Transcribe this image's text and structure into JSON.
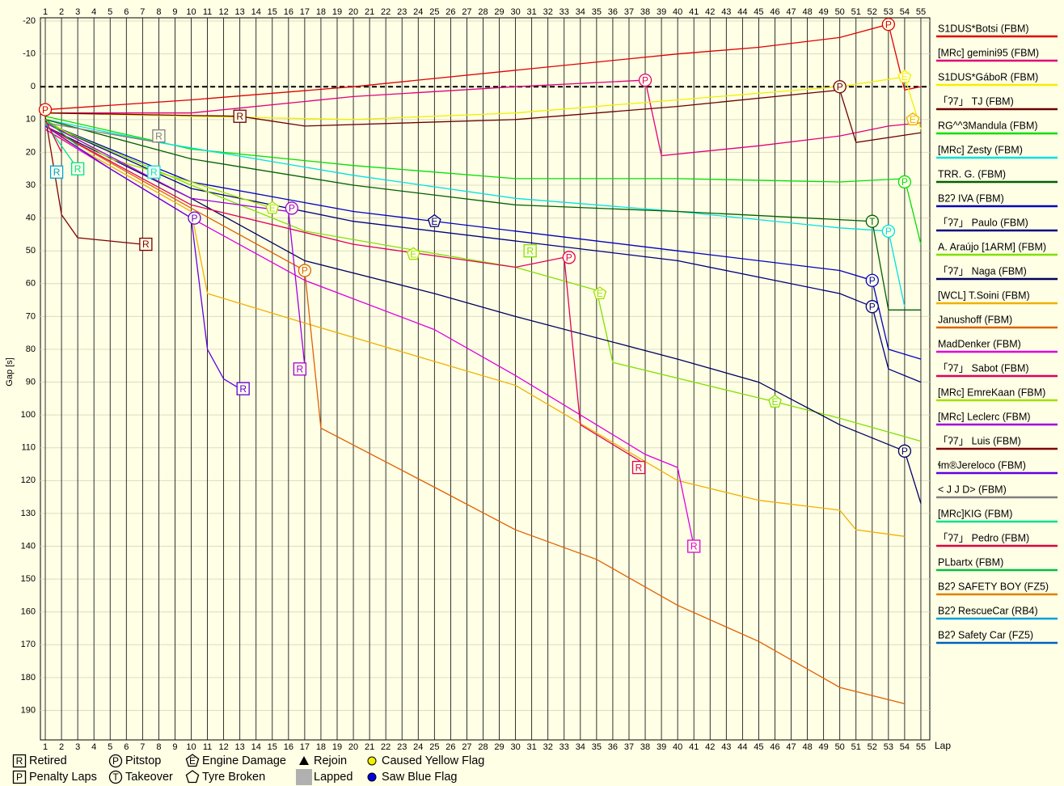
{
  "chart_data": {
    "type": "line",
    "y_axis_label": "Gap [s]",
    "x_axis_label": "Lap",
    "y_inverted": true,
    "grid": true,
    "reference_line": 0,
    "xlim": [
      0.7,
      55.55
    ],
    "ylim": [
      -21,
      199
    ],
    "xticks": [
      1,
      2,
      3,
      4,
      5,
      6,
      7,
      8,
      9,
      10,
      11,
      12,
      13,
      14,
      15,
      16,
      17,
      18,
      19,
      20,
      21,
      22,
      23,
      24,
      25,
      26,
      27,
      28,
      29,
      30,
      31,
      32,
      33,
      34,
      35,
      36,
      37,
      38,
      39,
      40,
      41,
      42,
      43,
      44,
      45,
      46,
      47,
      48,
      49,
      50,
      51,
      52,
      53,
      54,
      55
    ],
    "yticks": [
      -20,
      -10,
      0,
      10,
      20,
      30,
      40,
      50,
      60,
      70,
      80,
      90,
      100,
      110,
      120,
      130,
      140,
      150,
      160,
      170,
      180,
      190
    ],
    "series": [
      {
        "name": "S1DUS*Botsi (FBM)",
        "color": "#e00000",
        "x": [
          1,
          10,
          20,
          30,
          40,
          45,
          50,
          53,
          54,
          55
        ],
        "values": [
          7,
          4,
          0,
          -5,
          -10,
          -12,
          -15,
          -19,
          1,
          0
        ]
      },
      {
        "name": "[MRc] gemini95 (FBM)",
        "color": "#e0007a",
        "x": [
          1,
          10,
          20,
          30,
          38,
          39,
          45,
          50,
          53,
          55
        ],
        "values": [
          8,
          8,
          3,
          0,
          -2,
          21,
          18,
          15,
          12,
          11
        ]
      },
      {
        "name": "S1DUS*GáboR (FBM)",
        "color": "#f0f000",
        "x": [
          1,
          10,
          20,
          30,
          40,
          50,
          54,
          55
        ],
        "values": [
          8,
          9,
          10,
          8,
          4,
          0,
          -3,
          13
        ]
      },
      {
        "name": "「ʔ7」 TJ (FBM)",
        "color": "#6b0000",
        "x": [
          1,
          13,
          17,
          30,
          40,
          50,
          51,
          55
        ],
        "values": [
          8,
          9,
          12,
          10,
          6,
          1,
          17,
          14
        ]
      },
      {
        "name": "RG^^3Mandula (FBM)",
        "color": "#00e000",
        "x": [
          1,
          10,
          20,
          30,
          40,
          50,
          54,
          55
        ],
        "values": [
          9,
          19,
          24,
          28,
          28,
          29,
          28,
          48
        ]
      },
      {
        "name": "[MRc] Zesty (FBM)",
        "color": "#00e0e0",
        "x": [
          1,
          8,
          20,
          30,
          40,
          50,
          53,
          54
        ],
        "values": [
          10,
          17,
          27,
          34,
          38,
          43,
          44,
          67
        ]
      },
      {
        "name": "TRR. G. (FBM)",
        "color": "#006000",
        "x": [
          1,
          10,
          20,
          30,
          40,
          52,
          53,
          55
        ],
        "values": [
          10,
          22,
          30,
          36,
          38,
          41,
          68,
          68
        ]
      },
      {
        "name": "B2ʔ IVA (FBM)",
        "color": "#0000c0",
        "x": [
          1,
          10,
          20,
          30,
          40,
          50,
          52,
          53,
          55
        ],
        "values": [
          11,
          29,
          38,
          44,
          50,
          56,
          59,
          80,
          83
        ]
      },
      {
        "name": "「ʔ7」 Paulo (FBM)",
        "color": "#000080",
        "x": [
          1,
          10,
          20,
          30,
          40,
          50,
          52,
          53,
          55
        ],
        "values": [
          11,
          31,
          41,
          47,
          53,
          63,
          67,
          86,
          90
        ]
      },
      {
        "name": "A. Araújo [1ARM] (FBM)",
        "color": "#80e000",
        "x": [
          1,
          10,
          17,
          24,
          30,
          35,
          36,
          46,
          50,
          55
        ],
        "values": [
          11,
          30,
          44,
          50,
          55,
          62,
          84,
          96,
          101,
          108
        ]
      },
      {
        "name": "「ʔ7」 Naga (FBM)",
        "color": "#000060",
        "x": [
          1,
          10,
          17,
          25,
          30,
          40,
          45,
          50,
          54,
          55
        ],
        "values": [
          12,
          34,
          53,
          63,
          70,
          83,
          90,
          103,
          111,
          127
        ]
      },
      {
        "name": "[WCL] T.Soini (FBM)",
        "color": "#f0b000",
        "x": [
          1,
          10,
          11,
          17,
          30,
          40,
          45,
          50,
          51,
          54
        ],
        "values": [
          13,
          38,
          63,
          72,
          91,
          120,
          126,
          129,
          135,
          137
        ]
      },
      {
        "name": "Janushoff (FBM)",
        "color": "#e06000",
        "x": [
          1,
          10,
          17,
          18,
          25,
          30,
          35,
          40,
          45,
          50,
          54
        ],
        "values": [
          12,
          37,
          56,
          104,
          122,
          135,
          144,
          158,
          169,
          183,
          188
        ]
      },
      {
        "name": "MadDenker (FBM)",
        "color": "#e000e0",
        "x": [
          1,
          10,
          17,
          25,
          30,
          35,
          38,
          40,
          41
        ],
        "values": [
          13,
          40,
          59,
          74,
          88,
          103,
          112,
          116,
          140
        ]
      },
      {
        "name": "「ʔ7」 Sabot (FBM)",
        "color": "#e0005a",
        "x": [
          1,
          10,
          20,
          30,
          33,
          34,
          38
        ],
        "values": [
          12,
          36,
          48,
          55,
          52,
          103,
          115
        ]
      },
      {
        "name": "[MRc] EmreKaan (FBM)",
        "color": "#a0e000",
        "x": [
          1,
          5,
          10,
          15
        ],
        "values": [
          10,
          22,
          29,
          37
        ]
      },
      {
        "name": "[MRc] Leclerc (FBM)",
        "color": "#a000e0",
        "x": [
          1,
          10,
          16,
          17
        ],
        "values": [
          11,
          34,
          38,
          85
        ]
      },
      {
        "name": "「ʔ7」 Luis (FBM)",
        "color": "#800000",
        "x": [
          1,
          2,
          3,
          7
        ],
        "values": [
          9,
          39,
          46,
          48
        ]
      },
      {
        "name": "ɬm®Jereloco (FBM)",
        "color": "#6000e0",
        "x": [
          1,
          5,
          10,
          11,
          12,
          13
        ],
        "values": [
          12,
          25,
          40,
          80,
          89,
          92
        ]
      },
      {
        "name": "< J J D> (FBM)",
        "color": "#808080",
        "x": [
          1,
          8
        ],
        "values": [
          11,
          17
        ]
      },
      {
        "name": "[MRc]KIG (FBM)",
        "color": "#00e090",
        "x": [
          1,
          3
        ],
        "values": [
          11,
          25
        ]
      },
      {
        "name": "「ʔ7」 Pedro (FBM)",
        "color": "#e00040",
        "x": [
          1,
          2
        ],
        "values": [
          10,
          20
        ]
      },
      {
        "name": "PLbartx (FBM)",
        "color": "#00c040",
        "x": [
          1,
          3
        ],
        "values": [
          10,
          18
        ]
      },
      {
        "name": "B2ʔ SAFETY BOY (FZ5)",
        "color": "#e08000",
        "x": [],
        "values": []
      },
      {
        "name": "B2ʔ RescueCar (RB4)",
        "color": "#00a0e0",
        "x": [],
        "values": []
      },
      {
        "name": "B2ʔ Safety Car (FZ5)",
        "color": "#0060c0",
        "x": [],
        "values": []
      }
    ],
    "events": [
      {
        "symbol": "P",
        "shape": "circle",
        "color": "#e00000",
        "lap": 53,
        "gap": -19
      },
      {
        "symbol": "P",
        "shape": "circle",
        "color": "#e0007a",
        "lap": 38,
        "gap": -2
      },
      {
        "symbol": "P",
        "shape": "circle",
        "color": "#6b0000",
        "lap": 50,
        "gap": 0
      },
      {
        "symbol": "P",
        "shape": "circle",
        "color": "#e00000",
        "lap": 1,
        "gap": 7
      },
      {
        "symbol": "R",
        "shape": "square",
        "color": "#6b0000",
        "lap": 13,
        "gap": 9
      },
      {
        "symbol": "R",
        "shape": "square",
        "color": "#808080",
        "lap": 8,
        "gap": 15
      },
      {
        "symbol": "R",
        "shape": "square",
        "color": "#00a0e0",
        "lap": 1.7,
        "gap": 26
      },
      {
        "symbol": "R",
        "shape": "square",
        "color": "#00e090",
        "lap": 3,
        "gap": 25
      },
      {
        "symbol": "R",
        "shape": "square",
        "color": "#00e0e0",
        "lap": 7.7,
        "gap": 26
      },
      {
        "symbol": "R",
        "shape": "square",
        "color": "#800000",
        "lap": 7.2,
        "gap": 48
      },
      {
        "symbol": "P",
        "shape": "circle",
        "color": "#6000e0",
        "lap": 10.2,
        "gap": 40
      },
      {
        "symbol": "R",
        "shape": "square",
        "color": "#6000e0",
        "lap": 13.2,
        "gap": 92
      },
      {
        "symbol": "P",
        "shape": "circle",
        "color": "#a000e0",
        "lap": 16.2,
        "gap": 37
      },
      {
        "symbol": "R",
        "shape": "square",
        "color": "#a000e0",
        "lap": 16.7,
        "gap": 86
      },
      {
        "symbol": "E",
        "shape": "pentagon",
        "color": "#a0e000",
        "lap": 15,
        "gap": 37
      },
      {
        "symbol": "P",
        "shape": "circle",
        "color": "#e06000",
        "lap": 17,
        "gap": 56
      },
      {
        "symbol": "E",
        "shape": "pentagon",
        "color": "#000080",
        "lap": 25,
        "gap": 41
      },
      {
        "symbol": "E",
        "shape": "pentagon",
        "color": "#a0e000",
        "lap": 23.7,
        "gap": 51
      },
      {
        "symbol": "R",
        "shape": "square",
        "color": "#80e000",
        "lap": 30.9,
        "gap": 50
      },
      {
        "symbol": "P",
        "shape": "circle",
        "color": "#e0005a",
        "lap": 33.3,
        "gap": 52
      },
      {
        "symbol": "E",
        "shape": "pentagon",
        "color": "#a0e000",
        "lap": 35.2,
        "gap": 63
      },
      {
        "symbol": "R",
        "shape": "square",
        "color": "#e0005a",
        "lap": 37.6,
        "gap": 116
      },
      {
        "symbol": "R",
        "shape": "square",
        "color": "#e000e0",
        "lap": 41,
        "gap": 140
      },
      {
        "symbol": "E",
        "shape": "pentagon",
        "color": "#80e000",
        "lap": 46,
        "gap": 96
      },
      {
        "symbol": "T",
        "shape": "circle",
        "color": "#006000",
        "lap": 52,
        "gap": 41
      },
      {
        "symbol": "P",
        "shape": "circle",
        "color": "#0000c0",
        "lap": 52,
        "gap": 59
      },
      {
        "symbol": "P",
        "shape": "circle",
        "color": "#000080",
        "lap": 52,
        "gap": 67
      },
      {
        "symbol": "P",
        "shape": "circle",
        "color": "#00e0e0",
        "lap": 53,
        "gap": 44
      },
      {
        "symbol": "P",
        "shape": "circle",
        "color": "#00e000",
        "lap": 54,
        "gap": 29
      },
      {
        "symbol": "P",
        "shape": "circle",
        "color": "#000060",
        "lap": 54,
        "gap": 111
      },
      {
        "symbol": "E",
        "shape": "pentagon",
        "color": "#f0f000",
        "lap": 54,
        "gap": -3
      },
      {
        "symbol": "E",
        "shape": "pentagon",
        "color": "#f0b000",
        "lap": 54.5,
        "gap": 10
      }
    ],
    "key": [
      {
        "symbol": "R",
        "shape": "square",
        "label": "Retired"
      },
      {
        "symbol": "P",
        "shape": "square",
        "label": "Penalty Laps"
      },
      {
        "symbol": "P",
        "shape": "circle",
        "label": "Pitstop"
      },
      {
        "symbol": "T",
        "shape": "circle",
        "label": "Takeover"
      },
      {
        "symbol": "E",
        "shape": "pentagon",
        "label": "Engine Damage"
      },
      {
        "shape": "pentagon",
        "label": "Tyre Broken"
      },
      {
        "shape": "triangle",
        "label": "Rejoin"
      },
      {
        "shape": "gray-square",
        "label": "Lapped"
      },
      {
        "shape": "yellow-dot",
        "label": "Caused Yellow Flag"
      },
      {
        "shape": "blue-dot",
        "label": "Saw Blue Flag"
      }
    ]
  }
}
